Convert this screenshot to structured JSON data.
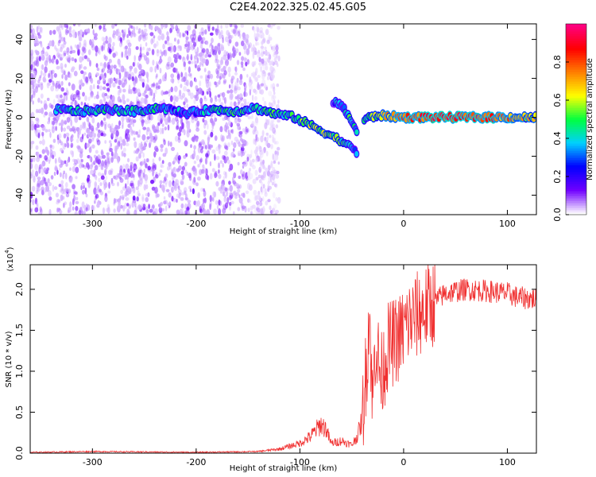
{
  "title": "C2E4.2022.325.02.45.G05",
  "chart_data": [
    {
      "type": "heatmap",
      "xlabel": "Height of straight line (km)",
      "ylabel": "Frequency (Hz)",
      "xlim": [
        -360,
        128
      ],
      "ylim": [
        -50,
        48
      ],
      "x_ticks": [
        -300,
        -200,
        -100,
        0,
        100
      ],
      "x_tick_labels": [
        "-300",
        "-200",
        "-100",
        "0",
        "100"
      ],
      "y_ticks": [
        -40,
        -20,
        0,
        20,
        40
      ],
      "y_tick_labels": [
        "-40",
        "-20",
        "0",
        "20",
        "40"
      ],
      "colorbar": {
        "label": "Normalized spectral amplitude",
        "range": [
          0,
          1
        ],
        "ticks": [
          0,
          0.2,
          0.4,
          0.6,
          0.8
        ],
        "tick_labels": [
          "0.0",
          "0.2",
          "0.4",
          "0.6",
          "0.8"
        ],
        "colors": [
          "#ffffff",
          "#7000ff",
          "#0000ff",
          "#00d0ff",
          "#00ff40",
          "#ffff00",
          "#ff8000",
          "#ff0000",
          "#ff0080"
        ]
      },
      "noise_extent_x": [
        -360,
        -120
      ],
      "ridge": [
        {
          "x": -335,
          "y": 4,
          "a": 0.35
        },
        {
          "x": -310,
          "y": 3,
          "a": 0.45
        },
        {
          "x": -285,
          "y": 4,
          "a": 0.4
        },
        {
          "x": -260,
          "y": 3,
          "a": 0.45
        },
        {
          "x": -235,
          "y": 5,
          "a": 0.4
        },
        {
          "x": -210,
          "y": 2,
          "a": 0.3
        },
        {
          "x": -185,
          "y": 4,
          "a": 0.4
        },
        {
          "x": -160,
          "y": 3,
          "a": 0.45
        },
        {
          "x": -145,
          "y": 5,
          "a": 0.4
        },
        {
          "x": -125,
          "y": 2,
          "a": 0.45
        },
        {
          "x": -105,
          "y": 0,
          "a": 0.45
        },
        {
          "x": -90,
          "y": -4,
          "a": 0.55
        },
        {
          "x": -75,
          "y": -8,
          "a": 0.55
        },
        {
          "x": -60,
          "y": -12,
          "a": 0.5
        },
        {
          "x": -45,
          "y": -18,
          "a": 0.35
        }
      ],
      "branch": [
        {
          "x": -68,
          "y": 8,
          "a": 0.3
        },
        {
          "x": -60,
          "y": 6,
          "a": 0.35
        },
        {
          "x": -52,
          "y": 0,
          "a": 0.45
        },
        {
          "x": -45,
          "y": -8,
          "a": 0.35
        }
      ],
      "flat": [
        {
          "x": -38,
          "y": -1,
          "a": 0.45
        },
        {
          "x": -25,
          "y": 1,
          "a": 0.6
        },
        {
          "x": 0,
          "y": 0,
          "a": 0.8
        },
        {
          "x": 40,
          "y": 0,
          "a": 0.85
        },
        {
          "x": 80,
          "y": 0,
          "a": 0.85
        },
        {
          "x": 128,
          "y": 0,
          "a": 0.6
        }
      ]
    },
    {
      "type": "line",
      "xlabel": "Height of straight line (km)",
      "ylabel": "SNR (10 * v/v)",
      "y_scale_label": "(x10",
      "y_scale_exponent": "4",
      "y_scale_close": ")",
      "xlim": [
        -360,
        128
      ],
      "ylim": [
        0,
        2.3
      ],
      "x_ticks": [
        -300,
        -200,
        -100,
        0,
        100
      ],
      "x_tick_labels": [
        "-300",
        "-200",
        "-100",
        "0",
        "100"
      ],
      "y_ticks": [
        0,
        0.5,
        1.0,
        1.5,
        2.0
      ],
      "y_tick_labels": [
        "0.0",
        "0.5",
        "1.0",
        "1.5",
        "2.0"
      ],
      "color": "#f03030",
      "series": [
        {
          "x": [
            -360,
            -300,
            -200,
            -140,
            -120,
            -100,
            -90,
            -80,
            -75,
            -70,
            -60,
            -50,
            -45,
            -40,
            -35,
            -33,
            -30,
            -27,
            -22,
            -15,
            -5,
            5,
            20,
            30,
            40,
            60,
            80,
            100,
            110,
            128
          ],
          "y": [
            0.01,
            0.02,
            0.01,
            0.02,
            0.05,
            0.12,
            0.2,
            0.35,
            0.3,
            0.12,
            0.15,
            0.1,
            0.2,
            0.4,
            1.2,
            1.8,
            0.6,
            1.4,
            0.9,
            1.3,
            1.4,
            1.6,
            1.75,
            1.85,
            1.95,
            2.0,
            1.98,
            1.95,
            1.9,
            1.88
          ]
        }
      ]
    }
  ]
}
